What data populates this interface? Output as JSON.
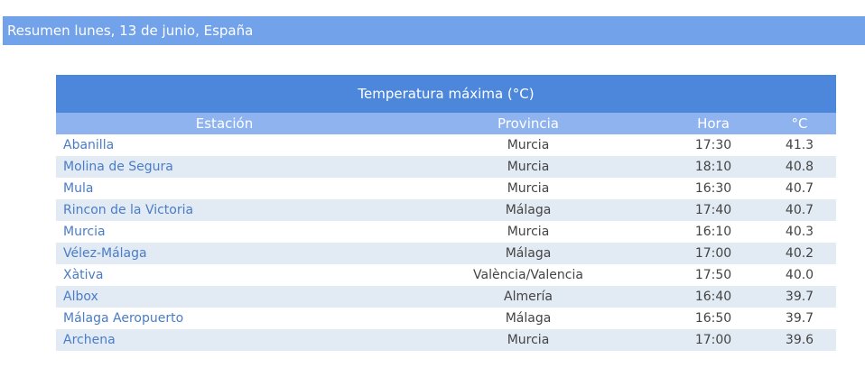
{
  "header": {
    "title": "Resumen lunes, 13 de junio, España"
  },
  "table": {
    "title": "Temperatura máxima (°C)",
    "columns": [
      "Estación",
      "Provincia",
      "Hora",
      "°C"
    ],
    "rows": [
      [
        "Abanilla",
        "Murcia",
        "17:30",
        "41.3"
      ],
      [
        "Molina de Segura",
        "Murcia",
        "18:10",
        "40.8"
      ],
      [
        "Mula",
        "Murcia",
        "16:30",
        "40.7"
      ],
      [
        "Rincon de la Victoria",
        "Málaga",
        "17:40",
        "40.7"
      ],
      [
        "Murcia",
        "Murcia",
        "16:10",
        "40.3"
      ],
      [
        "Vélez-Málaga",
        "Málaga",
        "17:00",
        "40.2"
      ],
      [
        "Xàtiva",
        "València/Valencia",
        "17:50",
        "40.0"
      ],
      [
        "Albox",
        "Almería",
        "16:40",
        "39.7"
      ],
      [
        "Málaga Aeropuerto",
        "Málaga",
        "16:50",
        "39.7"
      ],
      [
        "Archena",
        "Murcia",
        "17:00",
        "39.6"
      ]
    ]
  }
}
